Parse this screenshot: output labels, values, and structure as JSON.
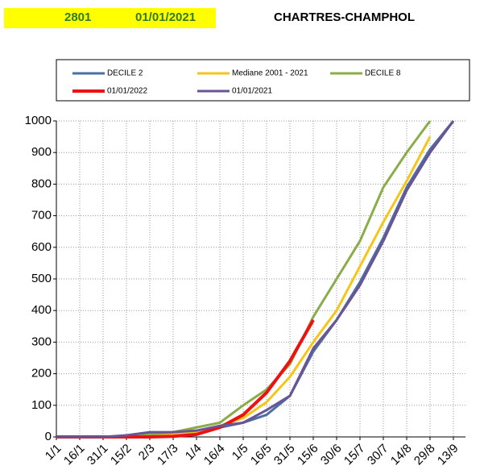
{
  "header": {
    "code": "2801",
    "date": "01/01/2021",
    "station": "CHARTRES-CHAMPHOL"
  },
  "chart_data": {
    "type": "line",
    "categories": [
      "1/1",
      "16/1",
      "31/1",
      "15/2",
      "2/3",
      "17/3",
      "1/4",
      "16/4",
      "1/5",
      "16/5",
      "31/5",
      "15/6",
      "30/6",
      "15/7",
      "30/7",
      "14/8",
      "29/8",
      "13/9"
    ],
    "series": [
      {
        "name": "DECILE 2",
        "color": "#4a6fa5",
        "values": [
          0,
          0,
          0,
          2,
          5,
          5,
          10,
          30,
          45,
          70,
          130,
          270,
          370,
          490,
          630,
          790,
          910,
          1000
        ]
      },
      {
        "name": "Mediane 2001 - 2021",
        "color": "#f5c518",
        "values": [
          0,
          0,
          0,
          3,
          5,
          8,
          15,
          35,
          60,
          110,
          190,
          300,
          400,
          540,
          680,
          810,
          950,
          null
        ]
      },
      {
        "name": "DECILE 8",
        "color": "#8aad4a",
        "values": [
          0,
          0,
          0,
          3,
          8,
          15,
          30,
          45,
          100,
          150,
          230,
          380,
          500,
          620,
          790,
          900,
          1000,
          null
        ]
      },
      {
        "name": "01/01/2022",
        "color": "#ee1111",
        "values": [
          0,
          0,
          0,
          0,
          0,
          2,
          8,
          30,
          70,
          140,
          240,
          370,
          null,
          null,
          null,
          null,
          null,
          null
        ]
      },
      {
        "name": "01/01/2021",
        "color": "#6a5494",
        "values": [
          0,
          0,
          0,
          5,
          15,
          15,
          20,
          35,
          45,
          85,
          130,
          280,
          370,
          480,
          620,
          780,
          900,
          1000
        ]
      }
    ],
    "ylim": [
      0,
      1000
    ],
    "yticks": [
      0,
      100,
      200,
      300,
      400,
      500,
      600,
      700,
      800,
      900,
      1000
    ],
    "grid": true
  }
}
